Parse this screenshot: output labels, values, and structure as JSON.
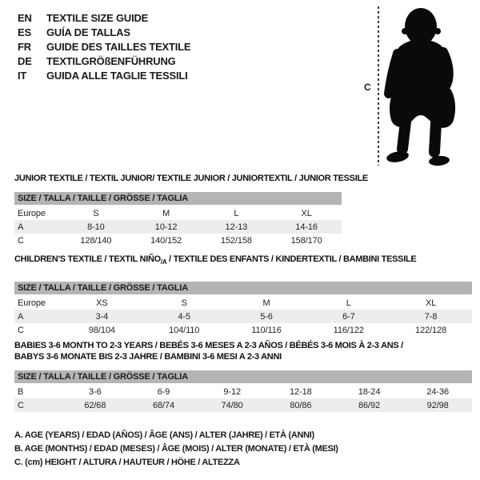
{
  "header": {
    "languages": [
      {
        "code": "EN",
        "label": "TEXTILE SIZE GUIDE"
      },
      {
        "code": "ES",
        "label": "GUÍA DE TALLAS"
      },
      {
        "code": "FR",
        "label": "GUIDE DES TAILLES TEXTILE"
      },
      {
        "code": "DE",
        "label": "TEXTILGRÖßENFÜHRUNG"
      },
      {
        "code": "IT",
        "label": "GUIDA ALLE TAGLIE TESSILI"
      }
    ]
  },
  "figure": {
    "measure_label": "C",
    "silhouette": "standing-toddler-silhouette"
  },
  "colors": {
    "size_bar_bg": "#b4b4b4",
    "alt_row_bg": "#ededed",
    "text": "#1a1a1a",
    "silhouette": "#0a0a0a"
  },
  "tables": [
    {
      "id": "junior",
      "title": "JUNIOR TEXTILE / TEXTIL JUNIOR/ TEXTILE JUNIOR / JUNIORTEXTIL / JUNIOR TESSILE",
      "size_header": "SIZE / TALLA / TAILLE / GRÖSSE / TAGLIA",
      "rows": [
        {
          "label": "Europe",
          "cells": [
            "S",
            "M",
            "L",
            "XL"
          ]
        },
        {
          "label": "A",
          "cells": [
            "8-10",
            "10-12",
            "12-13",
            "14-16"
          ]
        },
        {
          "label": "C",
          "cells": [
            "128/140",
            "140/152",
            "152/158",
            "158/170"
          ]
        }
      ]
    },
    {
      "id": "children",
      "title_pre": "CHILDREN'S TEXTILE / TEXTIL NIÑO",
      "title_sub": "/A",
      "title_post": " / TEXTILE DES ENFANTS / KINDERTEXTIL / BAMBINI TESSILE",
      "size_header": "SIZE / TALLA / TAILLE / GRÖSSE / TAGLIA",
      "rows": [
        {
          "label": "Europe",
          "cells": [
            "XS",
            "S",
            "M",
            "L",
            "XL"
          ]
        },
        {
          "label": "A",
          "cells": [
            "3-4",
            "4-5",
            "5-6",
            "6-7",
            "7-8"
          ]
        },
        {
          "label": "C",
          "cells": [
            "98/104",
            "104/110",
            "110/116",
            "116/122",
            "122/128"
          ]
        }
      ]
    },
    {
      "id": "babies",
      "title_lines": [
        "BABIES 3-6 MONTH TO 2-3 YEARS / BEBÉS 3-6 MESES A 2-3 AÑOS / BÉBÉS 3-6 MOIS À 2-3 ANS /",
        "BABYS 3-6 MONATE BIS 2-3 JAHRE / BAMBINI 3-6 MESI A 2-3 ANNI"
      ],
      "size_header": "SIZE / TALLA / TAILLE / GRÖSSE / TAGLIA",
      "rows": [
        {
          "label": "B",
          "cells": [
            "3-6",
            "6-9",
            "9-12",
            "12-18",
            "18-24",
            "24-36"
          ]
        },
        {
          "label": "C",
          "cells": [
            "62/68",
            "68/74",
            "74/80",
            "80/86",
            "86/92",
            "92/98"
          ]
        }
      ]
    }
  ],
  "footnotes": [
    "A. AGE (YEARS) / EDAD (AÑOS) / ÂGE (ANS) / ALTER (JAHRE) / ETÀ (ANNI)",
    "B. AGE (MONTHS) / EDAD (MESES) / ÂGE (MOIS) / ALTER (MONATE) / ETÀ (MESI)",
    "C. (cm) HEIGHT / ALTURA / HAUTEUR / HÖHE / ALTEZZA"
  ]
}
